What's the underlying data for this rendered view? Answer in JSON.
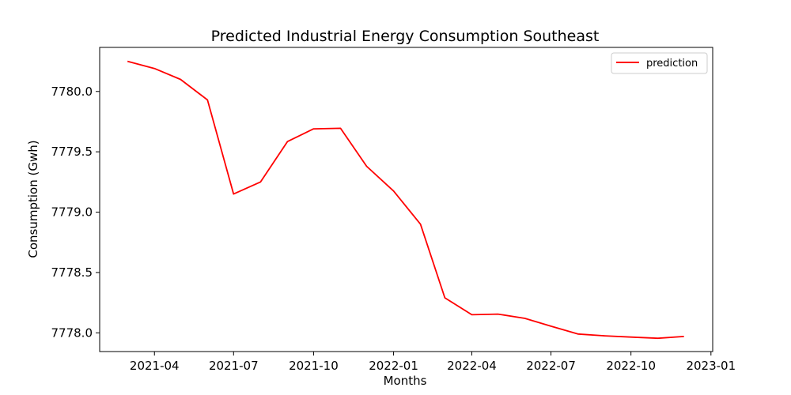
{
  "chart_data": {
    "type": "line",
    "title": "Predicted Industrial Energy Consumption Southeast",
    "xlabel": "Months",
    "ylabel": "Consumption (Gwh)",
    "x_axis_type": "date",
    "xlim": [
      "2021-01-28",
      "2023-01-03"
    ],
    "ylim": [
      7777.845,
      7780.365
    ],
    "x_ticks": [
      "2021-04",
      "2021-07",
      "2021-10",
      "2022-01",
      "2022-04",
      "2022-07",
      "2022-10",
      "2023-01"
    ],
    "y_ticks": [
      "7778.0",
      "7778.5",
      "7779.0",
      "7779.5",
      "7780.0"
    ],
    "grid": false,
    "legend": {
      "position": "top-right",
      "entries": [
        "prediction"
      ]
    },
    "series": [
      {
        "name": "prediction",
        "color": "#ff0000",
        "x": [
          "2021-03-01",
          "2021-04-01",
          "2021-05-01",
          "2021-06-01",
          "2021-07-01",
          "2021-08-01",
          "2021-09-01",
          "2021-10-01",
          "2021-11-01",
          "2021-12-01",
          "2022-01-01",
          "2022-02-01",
          "2022-03-01",
          "2022-04-01",
          "2022-05-01",
          "2022-06-01",
          "2022-07-01",
          "2022-08-01",
          "2022-09-01",
          "2022-10-01",
          "2022-11-01",
          "2022-12-01"
        ],
        "values": [
          7780.25,
          7780.19,
          7780.1,
          7779.93,
          7779.15,
          7779.25,
          7779.585,
          7779.69,
          7779.695,
          7779.38,
          7779.175,
          7778.9,
          7778.29,
          7778.15,
          7778.155,
          7778.12,
          7778.055,
          7777.99,
          7777.975,
          7777.965,
          7777.955,
          7777.97
        ]
      }
    ]
  }
}
